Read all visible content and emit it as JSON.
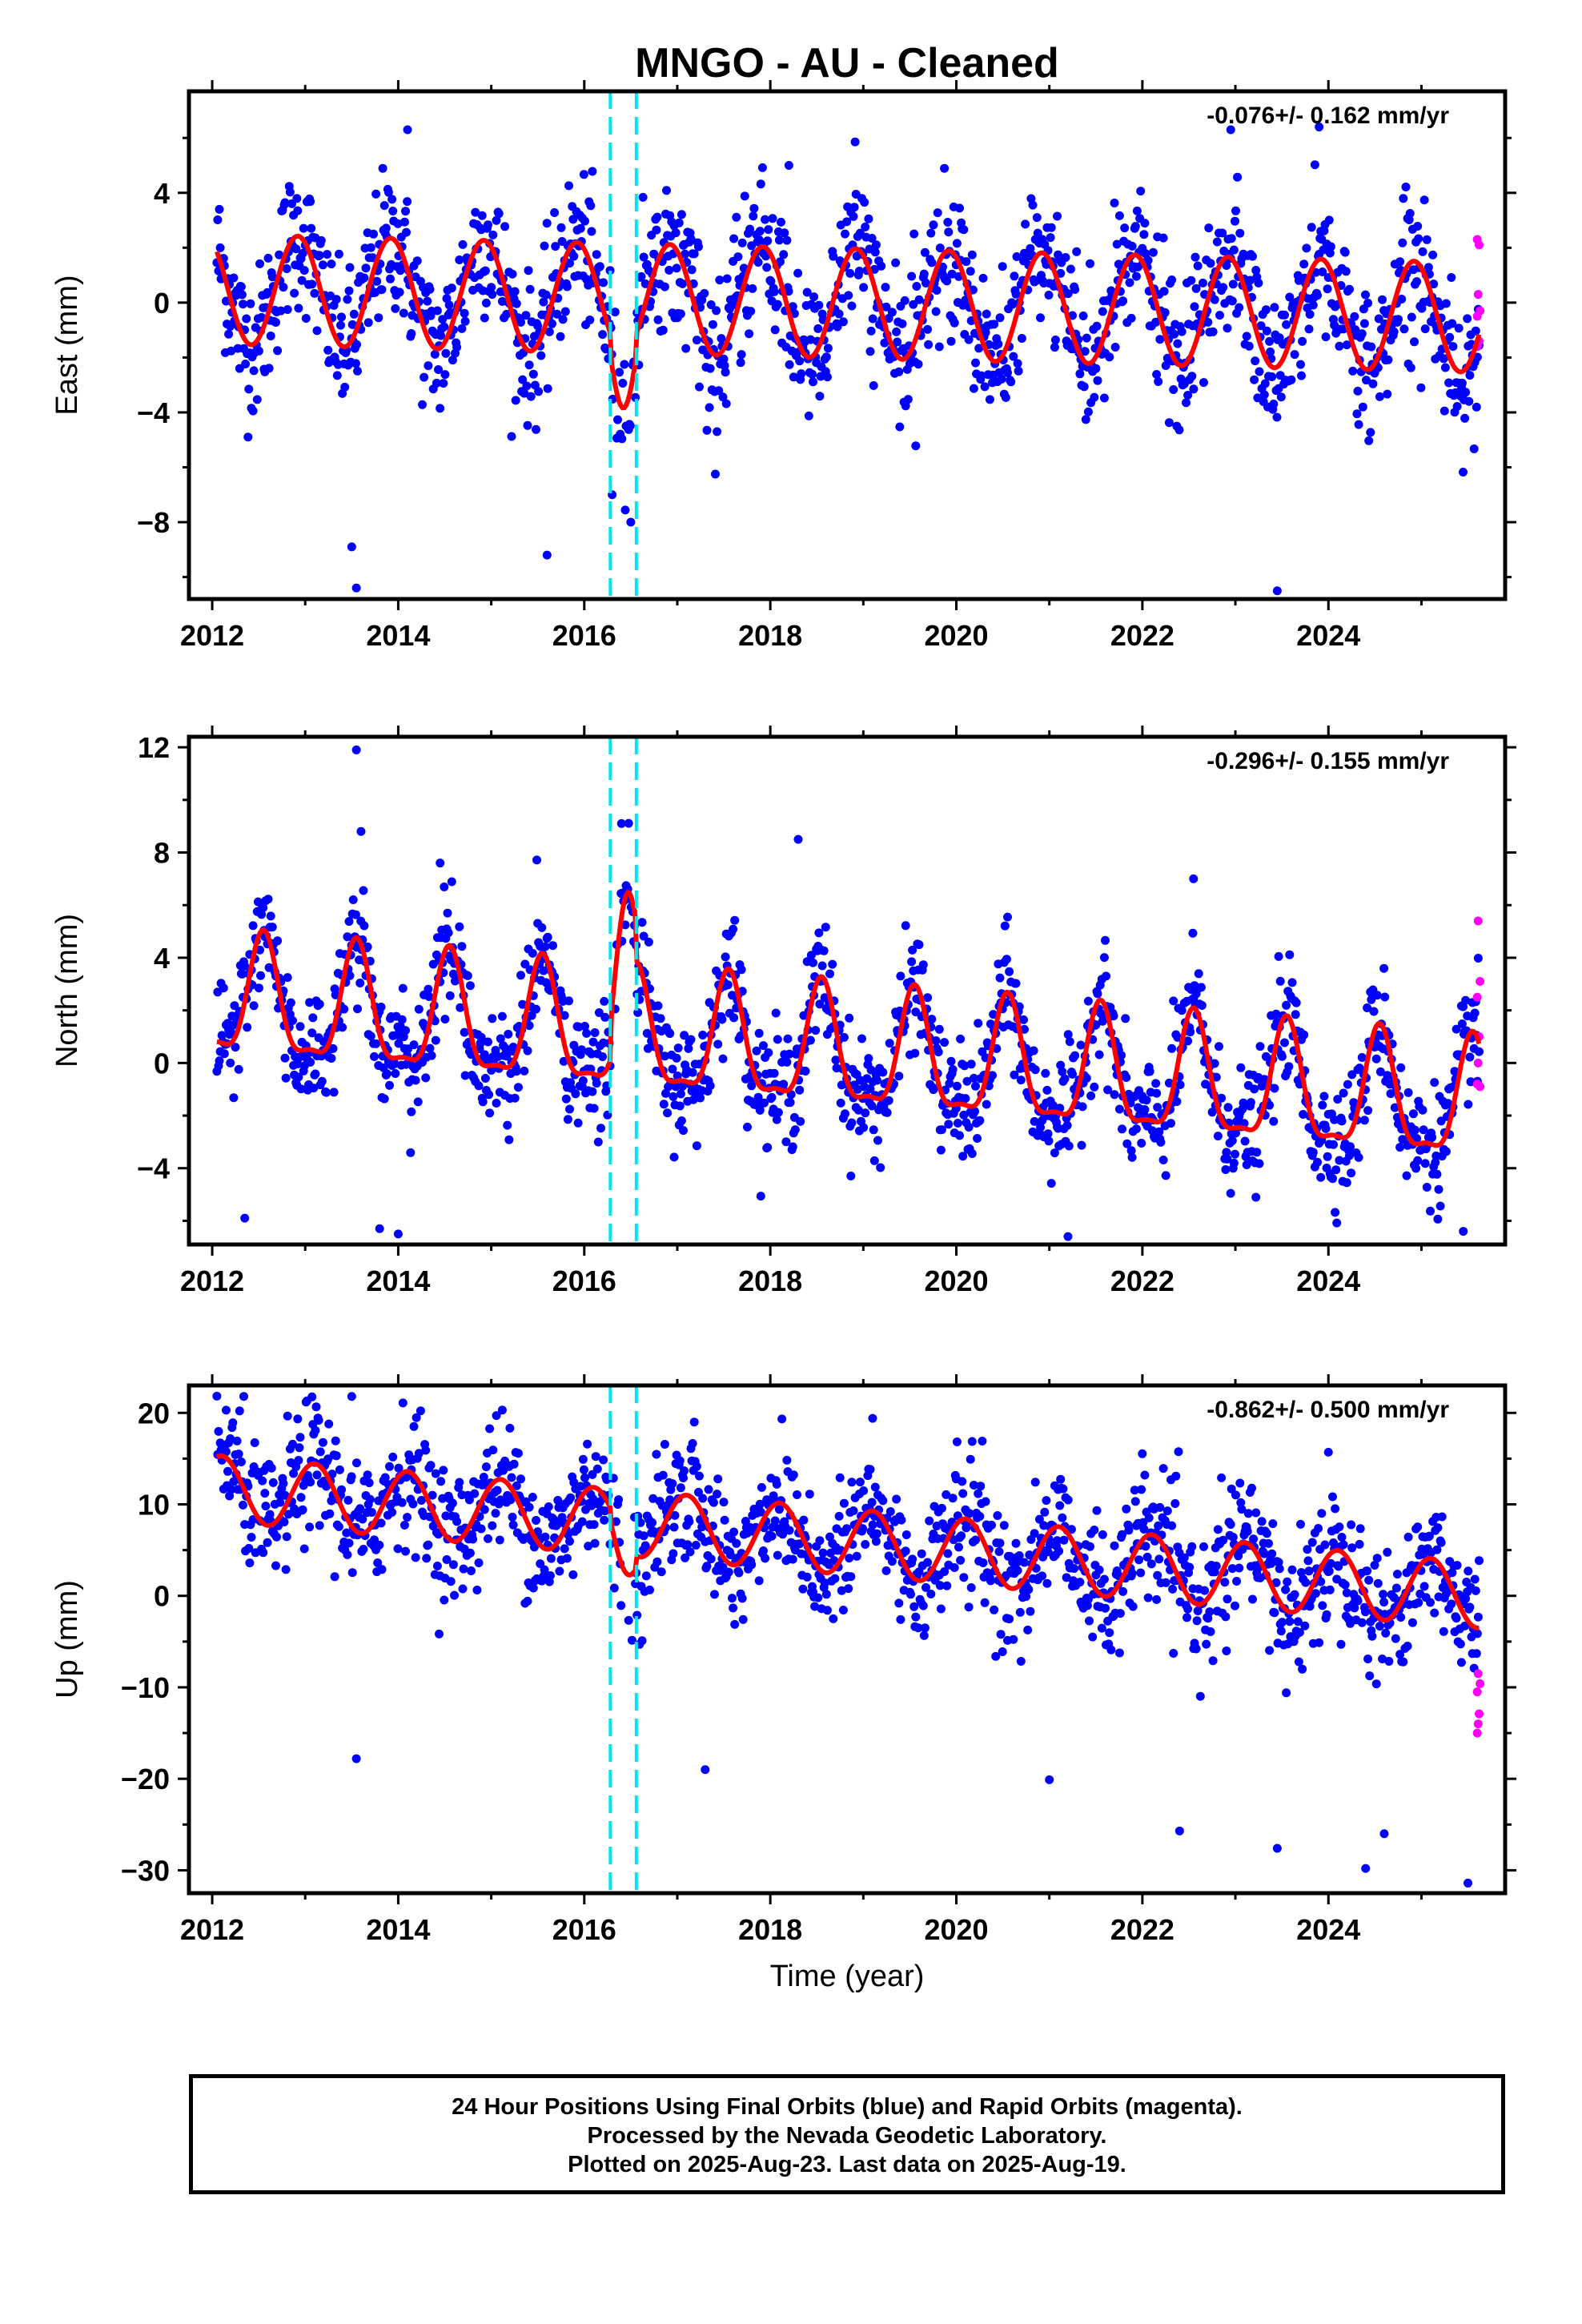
{
  "title": "MNGO  - AU - Cleaned",
  "footer": {
    "line1": "24 Hour Positions Using Final Orbits (blue) and Rapid Orbits (magenta).",
    "line2": "Processed by the Nevada Geodetic Laboratory.",
    "line3": "Plotted on 2025-Aug-23. Last data on 2025-Aug-19."
  },
  "colors": {
    "final_points": "#0000ff",
    "rapid_points": "#ff00ff",
    "model_fit": "#ff0000",
    "offset_lines": "#00e5ee",
    "frame": "#000000"
  },
  "chart_data": [
    {
      "type": "scatter",
      "component": "East",
      "ylabel": "East (mm)",
      "xlabel": "",
      "rate_text": "-0.076+/- 0.162 mm/yr",
      "xlim": [
        2011.75,
        2025.9
      ],
      "ylim": [
        -10.8,
        7.7
      ],
      "x_ticks": [
        2012,
        2014,
        2016,
        2018,
        2020,
        2022,
        2024
      ],
      "y_ticks": [
        4,
        0,
        -4,
        -8
      ],
      "offsets": [
        2016.28,
        2016.56
      ],
      "model": {
        "t0": 2012.05,
        "t1": 2025.62,
        "intercept": 0.0,
        "rate": -0.076,
        "annual_amp": 2.0,
        "annual_phase_year": 2012.92,
        "semiannual_amp": 0.0,
        "jumps": [
          {
            "start": 2016.28,
            "end": 2016.56,
            "shift": -2.0
          }
        ]
      },
      "scatter_sigma": 1.3,
      "outliers": [
        [
          2014.1,
          6.3
        ],
        [
          2013.5,
          -8.9
        ],
        [
          2013.55,
          -10.4
        ],
        [
          2015.6,
          -9.2
        ],
        [
          2016.5,
          -8.0
        ],
        [
          2023.45,
          -10.5
        ],
        [
          2022.95,
          6.3
        ],
        [
          2023.9,
          6.4
        ],
        [
          2016.3,
          -7.0
        ],
        [
          2018.2,
          5.0
        ]
      ],
      "rapid_points": [
        [
          2025.6,
          2.3
        ],
        [
          2025.62,
          2.1
        ],
        [
          2025.61,
          0.3
        ],
        [
          2025.63,
          -0.3
        ],
        [
          2025.6,
          -0.5
        ],
        [
          2025.62,
          -1.4
        ],
        [
          2025.6,
          -1.6
        ]
      ]
    },
    {
      "type": "scatter",
      "component": "North",
      "ylabel": "North (mm)",
      "xlabel": "",
      "rate_text": "-0.296+/- 0.155 mm/yr",
      "xlim": [
        2011.75,
        2025.9
      ],
      "ylim": [
        -6.9,
        12.4
      ],
      "x_ticks": [
        2012,
        2014,
        2016,
        2018,
        2020,
        2022,
        2024
      ],
      "y_ticks": [
        12,
        8,
        4,
        0,
        -4
      ],
      "offsets": [
        2016.28,
        2016.56
      ],
      "model": {
        "t0": 2012.05,
        "t1": 2025.62,
        "intercept": 0.4,
        "rate": -0.296,
        "annual_amp": 2.2,
        "annual_phase_year": 2012.55,
        "semiannual_amp": 0.7,
        "jumps": [
          {
            "start": 2016.28,
            "end": 2016.56,
            "shift": 3.5
          }
        ]
      },
      "scatter_sigma": 1.1,
      "outliers": [
        [
          2013.55,
          11.9
        ],
        [
          2013.6,
          8.8
        ],
        [
          2014.45,
          7.6
        ],
        [
          2016.4,
          9.1
        ],
        [
          2018.3,
          8.5
        ],
        [
          2022.55,
          7.0
        ],
        [
          2013.8,
          -6.3
        ],
        [
          2014.0,
          -6.5
        ],
        [
          2021.2,
          -6.6
        ],
        [
          2025.45,
          -6.4
        ],
        [
          2012.35,
          -5.9
        ]
      ],
      "rapid_points": [
        [
          2025.61,
          5.4
        ],
        [
          2025.63,
          3.1
        ],
        [
          2025.6,
          2.5
        ],
        [
          2025.62,
          1.0
        ],
        [
          2025.61,
          0.0
        ],
        [
          2025.6,
          -0.8
        ],
        [
          2025.63,
          -0.9
        ]
      ]
    },
    {
      "type": "scatter",
      "component": "Up",
      "ylabel": "Up (mm)",
      "xlabel": "Time (year)",
      "rate_text": "-0.862+/- 0.500 mm/yr",
      "xlim": [
        2011.75,
        2025.9
      ],
      "ylim": [
        -32.5,
        23.0
      ],
      "x_ticks": [
        2012,
        2014,
        2016,
        2018,
        2020,
        2022,
        2024
      ],
      "y_ticks": [
        20,
        10,
        0,
        -10,
        -20,
        -30
      ],
      "offsets": [
        2016.28,
        2016.56
      ],
      "model": {
        "t0": 2012.05,
        "t1": 2025.62,
        "intercept": 6.2,
        "rate": -0.862,
        "annual_amp": 3.6,
        "annual_phase_year": 2012.1,
        "semiannual_amp": 0.0,
        "jumps": [
          {
            "start": 2016.28,
            "end": 2016.56,
            "shift": -3.5
          }
        ]
      },
      "scatter_sigma": 3.6,
      "outliers": [
        [
          2012.15,
          20.3
        ],
        [
          2013.5,
          21.8
        ],
        [
          2013.55,
          -17.8
        ],
        [
          2019.1,
          19.4
        ],
        [
          2024.0,
          15.7
        ],
        [
          2022.4,
          -25.7
        ],
        [
          2023.45,
          -27.6
        ],
        [
          2024.4,
          -29.8
        ],
        [
          2024.6,
          -26.0
        ],
        [
          2025.5,
          -31.4
        ],
        [
          2017.3,
          -19.0
        ],
        [
          2021.0,
          -20.1
        ]
      ],
      "rapid_points": [
        [
          2025.61,
          -8.5
        ],
        [
          2025.63,
          -9.6
        ],
        [
          2025.6,
          -10.5
        ],
        [
          2025.62,
          -12.9
        ],
        [
          2025.61,
          -14.0
        ],
        [
          2025.6,
          -15.0
        ]
      ]
    }
  ]
}
